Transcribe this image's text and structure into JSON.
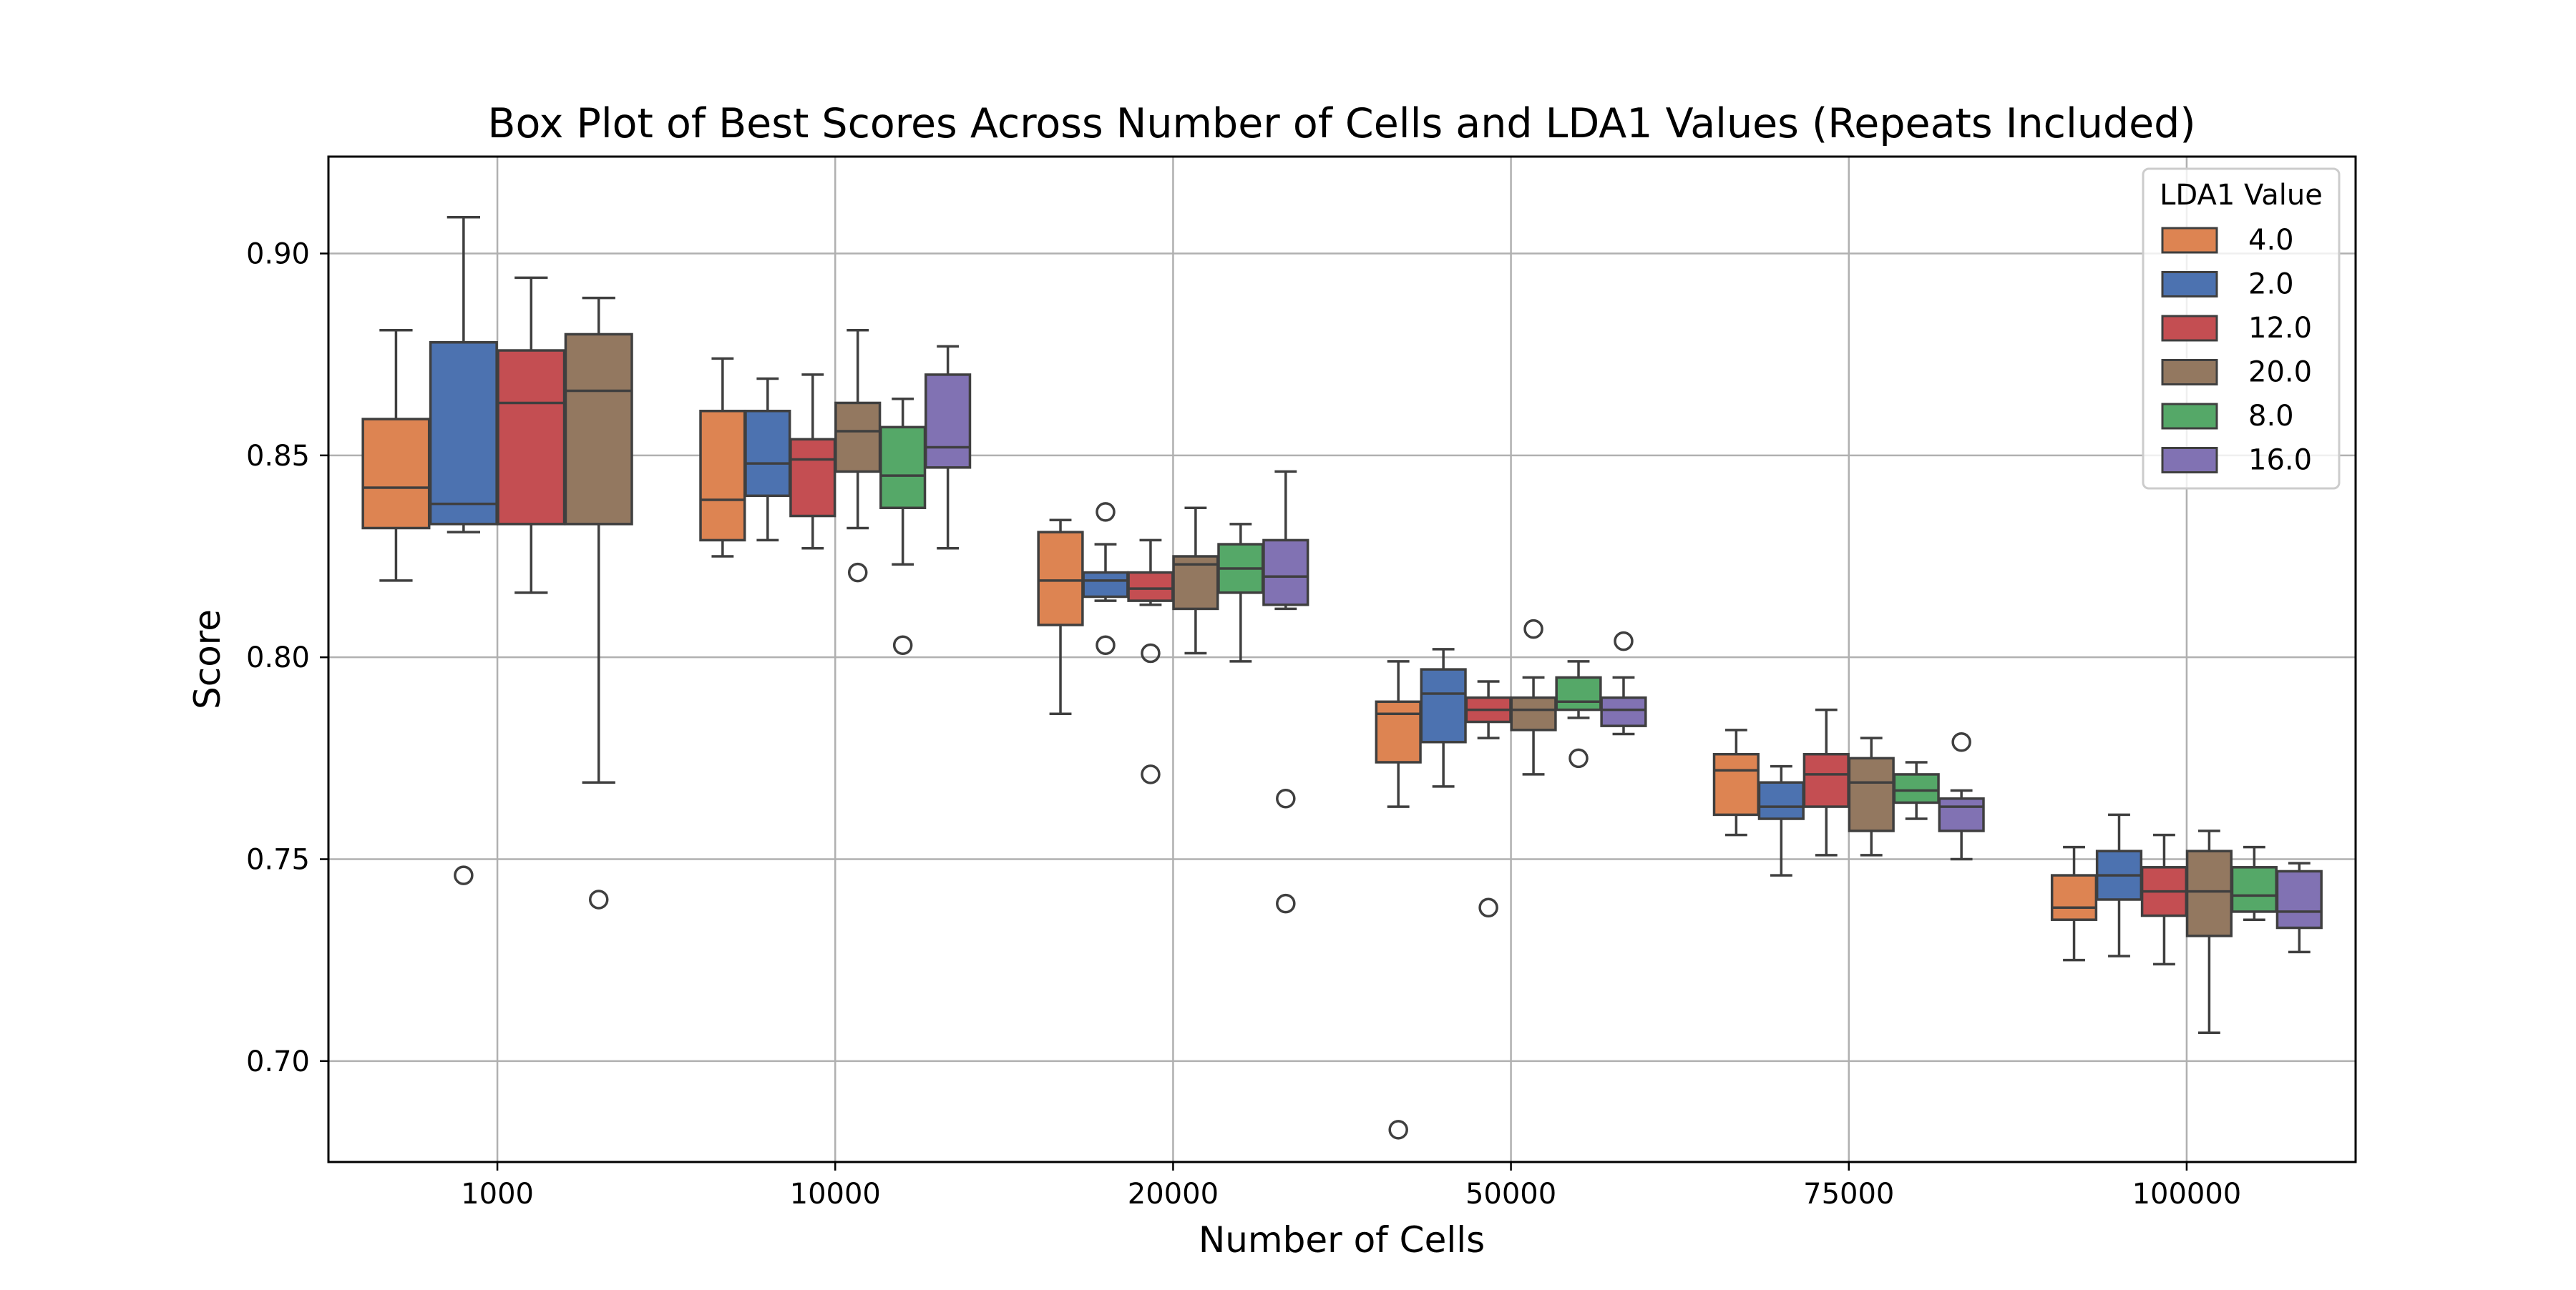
{
  "chart_data": {
    "type": "box",
    "title": "Box Plot of Best Scores Across Number of Cells and LDA1 Values (Repeats Included)",
    "xlabel": "Number of Cells",
    "ylabel": "Score",
    "categories": [
      "1000",
      "10000",
      "20000",
      "50000",
      "75000",
      "100000"
    ],
    "ylim": [
      0.675,
      0.924
    ],
    "yticks": [
      0.7,
      0.75,
      0.8,
      0.85,
      0.9
    ],
    "ytick_labels": [
      "0.70",
      "0.75",
      "0.80",
      "0.85",
      "0.90"
    ],
    "grid": true,
    "legend": {
      "title": "LDA1 Value",
      "placement": "top-right"
    },
    "series": [
      {
        "name": "4.0",
        "color": "#DD8452",
        "boxes": [
          {
            "category": "1000",
            "whislo": 0.819,
            "q1": 0.832,
            "median": 0.842,
            "q3": 0.859,
            "whishi": 0.881,
            "fliers": []
          },
          {
            "category": "10000",
            "whislo": 0.825,
            "q1": 0.829,
            "median": 0.839,
            "q3": 0.861,
            "whishi": 0.874,
            "fliers": []
          },
          {
            "category": "20000",
            "whislo": 0.786,
            "q1": 0.808,
            "median": 0.819,
            "q3": 0.831,
            "whishi": 0.834,
            "fliers": []
          },
          {
            "category": "50000",
            "whislo": 0.763,
            "q1": 0.774,
            "median": 0.786,
            "q3": 0.789,
            "whishi": 0.799,
            "fliers": [
              0.683
            ]
          },
          {
            "category": "75000",
            "whislo": 0.756,
            "q1": 0.761,
            "median": 0.772,
            "q3": 0.776,
            "whishi": 0.782,
            "fliers": []
          },
          {
            "category": "100000",
            "whislo": 0.725,
            "q1": 0.735,
            "median": 0.738,
            "q3": 0.746,
            "whishi": 0.753,
            "fliers": []
          }
        ]
      },
      {
        "name": "2.0",
        "color": "#4C72B0",
        "boxes": [
          {
            "category": "1000",
            "whislo": 0.831,
            "q1": 0.833,
            "median": 0.838,
            "q3": 0.878,
            "whishi": 0.909,
            "fliers": [
              0.746
            ]
          },
          {
            "category": "10000",
            "whislo": 0.829,
            "q1": 0.84,
            "median": 0.848,
            "q3": 0.861,
            "whishi": 0.869,
            "fliers": []
          },
          {
            "category": "20000",
            "whislo": 0.814,
            "q1": 0.815,
            "median": 0.819,
            "q3": 0.821,
            "whishi": 0.828,
            "fliers": [
              0.836,
              0.803
            ]
          },
          {
            "category": "50000",
            "whislo": 0.768,
            "q1": 0.779,
            "median": 0.791,
            "q3": 0.797,
            "whishi": 0.802,
            "fliers": []
          },
          {
            "category": "75000",
            "whislo": 0.746,
            "q1": 0.76,
            "median": 0.763,
            "q3": 0.769,
            "whishi": 0.773,
            "fliers": []
          },
          {
            "category": "100000",
            "whislo": 0.726,
            "q1": 0.74,
            "median": 0.746,
            "q3": 0.752,
            "whishi": 0.761,
            "fliers": []
          }
        ]
      },
      {
        "name": "12.0",
        "color": "#C44E52",
        "boxes": [
          {
            "category": "1000",
            "whislo": 0.816,
            "q1": 0.833,
            "median": 0.863,
            "q3": 0.876,
            "whishi": 0.894,
            "fliers": []
          },
          {
            "category": "10000",
            "whislo": 0.827,
            "q1": 0.835,
            "median": 0.849,
            "q3": 0.854,
            "whishi": 0.87,
            "fliers": []
          },
          {
            "category": "20000",
            "whislo": 0.813,
            "q1": 0.814,
            "median": 0.817,
            "q3": 0.821,
            "whishi": 0.829,
            "fliers": [
              0.801,
              0.771
            ]
          },
          {
            "category": "50000",
            "whislo": 0.78,
            "q1": 0.784,
            "median": 0.787,
            "q3": 0.79,
            "whishi": 0.794,
            "fliers": [
              0.738
            ]
          },
          {
            "category": "75000",
            "whislo": 0.751,
            "q1": 0.763,
            "median": 0.771,
            "q3": 0.776,
            "whishi": 0.787,
            "fliers": []
          },
          {
            "category": "100000",
            "whislo": 0.724,
            "q1": 0.736,
            "median": 0.742,
            "q3": 0.748,
            "whishi": 0.756,
            "fliers": []
          }
        ]
      },
      {
        "name": "20.0",
        "color": "#937860",
        "boxes": [
          {
            "category": "1000",
            "whislo": 0.769,
            "q1": 0.833,
            "median": 0.866,
            "q3": 0.88,
            "whishi": 0.889,
            "fliers": [
              0.74
            ]
          },
          {
            "category": "10000",
            "whislo": 0.832,
            "q1": 0.846,
            "median": 0.856,
            "q3": 0.863,
            "whishi": 0.881,
            "fliers": [
              0.821
            ]
          },
          {
            "category": "20000",
            "whislo": 0.801,
            "q1": 0.812,
            "median": 0.823,
            "q3": 0.825,
            "whishi": 0.837,
            "fliers": []
          },
          {
            "category": "50000",
            "whislo": 0.771,
            "q1": 0.782,
            "median": 0.787,
            "q3": 0.79,
            "whishi": 0.795,
            "fliers": [
              0.807
            ]
          },
          {
            "category": "75000",
            "whislo": 0.751,
            "q1": 0.757,
            "median": 0.769,
            "q3": 0.775,
            "whishi": 0.78,
            "fliers": []
          },
          {
            "category": "100000",
            "whislo": 0.707,
            "q1": 0.731,
            "median": 0.742,
            "q3": 0.752,
            "whishi": 0.757,
            "fliers": []
          }
        ]
      },
      {
        "name": "8.0",
        "color": "#55A868",
        "boxes": [
          {
            "category": "10000",
            "whislo": 0.823,
            "q1": 0.837,
            "median": 0.845,
            "q3": 0.857,
            "whishi": 0.864,
            "fliers": [
              0.803
            ]
          },
          {
            "category": "20000",
            "whislo": 0.799,
            "q1": 0.816,
            "median": 0.822,
            "q3": 0.828,
            "whishi": 0.833,
            "fliers": []
          },
          {
            "category": "50000",
            "whislo": 0.785,
            "q1": 0.787,
            "median": 0.789,
            "q3": 0.795,
            "whishi": 0.799,
            "fliers": [
              0.775
            ]
          },
          {
            "category": "75000",
            "whislo": 0.76,
            "q1": 0.764,
            "median": 0.767,
            "q3": 0.771,
            "whishi": 0.774,
            "fliers": []
          },
          {
            "category": "100000",
            "whislo": 0.735,
            "q1": 0.737,
            "median": 0.741,
            "q3": 0.748,
            "whishi": 0.753,
            "fliers": []
          }
        ]
      },
      {
        "name": "16.0",
        "color": "#8172B3",
        "boxes": [
          {
            "category": "10000",
            "whislo": 0.827,
            "q1": 0.847,
            "median": 0.852,
            "q3": 0.87,
            "whishi": 0.877,
            "fliers": []
          },
          {
            "category": "20000",
            "whislo": 0.812,
            "q1": 0.813,
            "median": 0.82,
            "q3": 0.829,
            "whishi": 0.846,
            "fliers": [
              0.765,
              0.739
            ]
          },
          {
            "category": "50000",
            "whislo": 0.781,
            "q1": 0.783,
            "median": 0.787,
            "q3": 0.79,
            "whishi": 0.795,
            "fliers": [
              0.804
            ]
          },
          {
            "category": "75000",
            "whislo": 0.75,
            "q1": 0.757,
            "median": 0.763,
            "q3": 0.765,
            "whishi": 0.767,
            "fliers": [
              0.779
            ]
          },
          {
            "category": "100000",
            "whislo": 0.727,
            "q1": 0.733,
            "median": 0.737,
            "q3": 0.747,
            "whishi": 0.749,
            "fliers": []
          }
        ]
      }
    ]
  },
  "style": {
    "line_color": "#3f3f3f",
    "grid_color": "#b0b0b0",
    "axis_color": "#000000",
    "background": "#ffffff"
  }
}
